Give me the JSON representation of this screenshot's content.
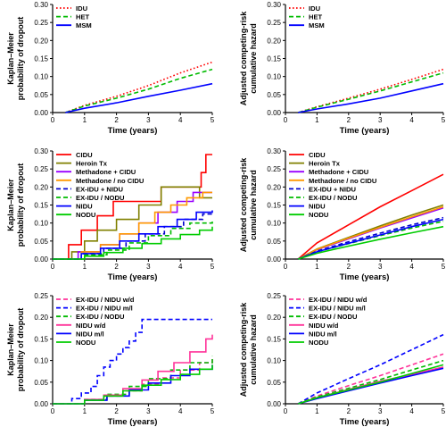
{
  "chart_data": [
    {
      "type": "line",
      "xlabel": "Time (years)",
      "ylabel": [
        "Kaplan–Meier",
        "probability of dropout"
      ],
      "xlim": [
        0,
        5
      ],
      "ylim": [
        0,
        0.3
      ],
      "xticks": [
        "0",
        "1",
        "2",
        "3",
        "4",
        "5"
      ],
      "yticks": [
        "0.00",
        "0.05",
        "0.10",
        "0.15",
        "0.20",
        "0.25",
        "0.30"
      ],
      "legend_position": "top-left",
      "series": [
        {
          "name": "IDU",
          "color": "#ff0000",
          "dash": "dot",
          "x": [
            0.4,
            1,
            2,
            3,
            4,
            5
          ],
          "y": [
            0,
            0.02,
            0.045,
            0.075,
            0.11,
            0.14
          ]
        },
        {
          "name": "HET",
          "color": "#00bb00",
          "dash": "dash",
          "x": [
            0.4,
            1,
            2,
            3,
            4,
            5
          ],
          "y": [
            0,
            0.018,
            0.04,
            0.065,
            0.095,
            0.12
          ]
        },
        {
          "name": "MSM",
          "color": "#0000ff",
          "dash": "solid",
          "x": [
            0.4,
            1,
            2,
            3,
            4,
            5
          ],
          "y": [
            0,
            0.012,
            0.027,
            0.045,
            0.062,
            0.08
          ]
        }
      ]
    },
    {
      "type": "line",
      "xlabel": "Time (years)",
      "ylabel": [
        "Adjusted competing-risk",
        "cumulative hazard"
      ],
      "xlim": [
        0,
        5
      ],
      "ylim": [
        0,
        0.3
      ],
      "xticks": [
        "0",
        "1",
        "2",
        "3",
        "4",
        "5"
      ],
      "yticks": [
        "0.00",
        "0.05",
        "0.10",
        "0.15",
        "0.20",
        "0.25",
        "0.30"
      ],
      "legend_position": "top-left",
      "series": [
        {
          "name": "IDU",
          "color": "#ff0000",
          "dash": "dot",
          "x": [
            0.4,
            1,
            2,
            3,
            4,
            5
          ],
          "y": [
            0,
            0.016,
            0.04,
            0.065,
            0.092,
            0.12
          ]
        },
        {
          "name": "HET",
          "color": "#00bb00",
          "dash": "dash",
          "x": [
            0.4,
            1,
            2,
            3,
            4,
            5
          ],
          "y": [
            0,
            0.015,
            0.037,
            0.06,
            0.085,
            0.11
          ]
        },
        {
          "name": "MSM",
          "color": "#0000ff",
          "dash": "solid",
          "x": [
            0.4,
            1,
            2,
            3,
            4,
            5
          ],
          "y": [
            0,
            0.01,
            0.024,
            0.04,
            0.06,
            0.08
          ]
        }
      ]
    },
    {
      "type": "line",
      "xlabel": "Time (years)",
      "ylabel": [
        "Kaplan–Meier",
        "probability of dropout"
      ],
      "xlim": [
        0,
        5
      ],
      "ylim": [
        0,
        0.3
      ],
      "xticks": [
        "0",
        "1",
        "2",
        "3",
        "4",
        "5"
      ],
      "yticks": [
        "0.00",
        "0.05",
        "0.10",
        "0.15",
        "0.20",
        "0.25",
        "0.30"
      ],
      "legend_position": "top-left",
      "series": [
        {
          "name": "CIDU",
          "color": "#ff0000",
          "dash": "solid",
          "step": true,
          "x": [
            0,
            0.4,
            0.5,
            0.9,
            1.4,
            1.9,
            2.6,
            3.4,
            4.5,
            4.65,
            4.8,
            5
          ],
          "y": [
            0,
            0,
            0.04,
            0.08,
            0.12,
            0.16,
            0.16,
            0.2,
            0.2,
            0.24,
            0.29,
            0.29
          ]
        },
        {
          "name": "Heroin Tx",
          "color": "#808000",
          "dash": "solid",
          "step": true,
          "x": [
            0,
            0.4,
            0.6,
            1.0,
            1.4,
            2.0,
            2.7,
            3.4,
            4.5,
            4.6,
            5
          ],
          "y": [
            0,
            0,
            0.02,
            0.05,
            0.08,
            0.11,
            0.15,
            0.2,
            0.2,
            0.17,
            0.17
          ]
        },
        {
          "name": "Methadone + CIDU",
          "color": "#9900ff",
          "dash": "solid",
          "step": true,
          "x": [
            0,
            0.4,
            0.8,
            1.5,
            2.1,
            2.7,
            3.3,
            3.9,
            4.4,
            5
          ],
          "y": [
            0,
            0,
            0.02,
            0.04,
            0.07,
            0.1,
            0.13,
            0.16,
            0.185,
            0.185
          ]
        },
        {
          "name": "Methadone / no CIDU",
          "color": "#ff9900",
          "dash": "solid",
          "step": true,
          "x": [
            0,
            0.4,
            0.9,
            1.5,
            2.1,
            2.7,
            3.2,
            3.7,
            4.2,
            4.7,
            5
          ],
          "y": [
            0,
            0,
            0.02,
            0.04,
            0.07,
            0.1,
            0.13,
            0.15,
            0.17,
            0.185,
            0.185
          ]
        },
        {
          "name": "EX-IDU + NIDU",
          "color": "#0000cc",
          "dash": "dash",
          "step": true,
          "x": [
            0,
            0.4,
            0.9,
            1.6,
            2.3,
            2.9,
            3.5,
            4.1,
            4.7,
            5
          ],
          "y": [
            0,
            0,
            0.015,
            0.03,
            0.05,
            0.07,
            0.09,
            0.11,
            0.125,
            0.125
          ]
        },
        {
          "name": "EX-IDU / NODU",
          "color": "#00bb00",
          "dash": "dash",
          "step": true,
          "x": [
            0,
            0.4,
            1.0,
            1.7,
            2.4,
            3.0,
            3.7,
            4.3,
            5
          ],
          "y": [
            0,
            0,
            0.012,
            0.025,
            0.045,
            0.065,
            0.085,
            0.1,
            0.11
          ]
        },
        {
          "name": "NIDU",
          "color": "#0000ff",
          "dash": "solid",
          "step": true,
          "x": [
            0,
            0.4,
            0.9,
            1.5,
            2.1,
            2.7,
            3.3,
            3.9,
            4.5,
            5
          ],
          "y": [
            0,
            0,
            0.015,
            0.03,
            0.05,
            0.07,
            0.09,
            0.11,
            0.13,
            0.135
          ]
        },
        {
          "name": "NODU",
          "color": "#00cc00",
          "dash": "solid",
          "step": true,
          "x": [
            0,
            0.4,
            1.0,
            1.6,
            2.2,
            2.8,
            3.4,
            4.0,
            4.6,
            5
          ],
          "y": [
            0,
            0,
            0.008,
            0.018,
            0.03,
            0.043,
            0.056,
            0.068,
            0.08,
            0.09
          ]
        }
      ]
    },
    {
      "type": "line",
      "xlabel": "Time (years)",
      "ylabel": [
        "Adjusted competing-risk",
        "cumulative hazard"
      ],
      "xlim": [
        0,
        5
      ],
      "ylim": [
        0,
        0.3
      ],
      "xticks": [
        "0",
        "1",
        "2",
        "3",
        "4",
        "5"
      ],
      "yticks": [
        "0.00",
        "0.05",
        "0.10",
        "0.15",
        "0.20",
        "0.25",
        "0.30"
      ],
      "legend_position": "top-left",
      "series": [
        {
          "name": "CIDU",
          "color": "#ff0000",
          "dash": "solid",
          "x": [
            0.4,
            1,
            2,
            3,
            4,
            5
          ],
          "y": [
            0,
            0.045,
            0.095,
            0.145,
            0.19,
            0.235
          ]
        },
        {
          "name": "Heroin Tx",
          "color": "#808000",
          "dash": "solid",
          "x": [
            0.4,
            1,
            2,
            3,
            4,
            5
          ],
          "y": [
            0,
            0.028,
            0.06,
            0.092,
            0.122,
            0.15
          ]
        },
        {
          "name": "Methadone + CIDU",
          "color": "#9900ff",
          "dash": "solid",
          "x": [
            0.4,
            1,
            2,
            3,
            4,
            5
          ],
          "y": [
            0,
            0.026,
            0.056,
            0.086,
            0.114,
            0.142
          ]
        },
        {
          "name": "Methadone / no CIDU",
          "color": "#ff9900",
          "dash": "solid",
          "x": [
            0.4,
            1,
            2,
            3,
            4,
            5
          ],
          "y": [
            0,
            0.027,
            0.058,
            0.088,
            0.117,
            0.145
          ]
        },
        {
          "name": "EX-IDU + NIDU",
          "color": "#0000cc",
          "dash": "dash",
          "x": [
            0.4,
            1,
            2,
            3,
            4,
            5
          ],
          "y": [
            0,
            0.022,
            0.048,
            0.072,
            0.095,
            0.115
          ]
        },
        {
          "name": "EX-IDU / NODU",
          "color": "#00bb00",
          "dash": "dash",
          "x": [
            0.4,
            1,
            2,
            3,
            4,
            5
          ],
          "y": [
            0,
            0.02,
            0.043,
            0.065,
            0.086,
            0.105
          ]
        },
        {
          "name": "NIDU",
          "color": "#0000ff",
          "dash": "solid",
          "x": [
            0.4,
            1,
            2,
            3,
            4,
            5
          ],
          "y": [
            0,
            0.02,
            0.044,
            0.067,
            0.09,
            0.11
          ]
        },
        {
          "name": "NODU",
          "color": "#00cc00",
          "dash": "solid",
          "x": [
            0.4,
            1,
            2,
            3,
            4,
            5
          ],
          "y": [
            0,
            0.016,
            0.036,
            0.055,
            0.073,
            0.09
          ]
        }
      ]
    },
    {
      "type": "line",
      "xlabel": "Time (years)",
      "ylabel": [
        "Kaplan–Meier",
        "probability of dropout"
      ],
      "xlim": [
        0,
        5
      ],
      "ylim": [
        0,
        0.25
      ],
      "xticks": [
        "0",
        "1",
        "2",
        "3",
        "4",
        "5"
      ],
      "yticks": [
        "0.00",
        "0.05",
        "0.10",
        "0.15",
        "0.20",
        "0.25"
      ],
      "legend_position": "top-left",
      "series": [
        {
          "name": "EX-IDU / NIDU w/d",
          "color": "#ff3399",
          "dash": "dash",
          "step": true,
          "x": [
            0,
            0.4,
            1.0,
            1.6,
            2.2,
            2.8,
            3.4,
            4.0,
            4.6,
            5
          ],
          "y": [
            0,
            0,
            0.008,
            0.018,
            0.03,
            0.045,
            0.06,
            0.078,
            0.095,
            0.105
          ]
        },
        {
          "name": "EX-IDU / NIDU m/l",
          "color": "#0000ff",
          "dash": "dash",
          "step": true,
          "x": [
            0,
            0.4,
            0.6,
            0.9,
            1.2,
            1.4,
            1.6,
            1.8,
            2.0,
            2.2,
            2.4,
            2.6,
            2.8,
            5
          ],
          "y": [
            0,
            0,
            0.012,
            0.025,
            0.04,
            0.065,
            0.085,
            0.1,
            0.115,
            0.13,
            0.145,
            0.165,
            0.195,
            0.195
          ]
        },
        {
          "name": "EX-IDU / NODU",
          "color": "#00bb00",
          "dash": "dash",
          "step": true,
          "x": [
            0,
            0.4,
            1.0,
            1.7,
            2.4,
            3.0,
            3.7,
            4.3,
            5
          ],
          "y": [
            0,
            0,
            0.01,
            0.022,
            0.04,
            0.058,
            0.078,
            0.095,
            0.11
          ]
        },
        {
          "name": "NIDU w/d",
          "color": "#ff3399",
          "dash": "solid",
          "step": true,
          "x": [
            0,
            0.4,
            1.0,
            1.6,
            2.2,
            2.8,
            3.3,
            3.8,
            4.3,
            4.8,
            5
          ],
          "y": [
            0,
            0,
            0.01,
            0.02,
            0.035,
            0.055,
            0.075,
            0.095,
            0.12,
            0.15,
            0.16
          ]
        },
        {
          "name": "NIDU m/l",
          "color": "#0000ff",
          "dash": "solid",
          "step": true,
          "x": [
            0,
            0.4,
            1.0,
            1.7,
            2.4,
            3.0,
            3.7,
            4.3,
            5
          ],
          "y": [
            0,
            0,
            0.008,
            0.018,
            0.032,
            0.048,
            0.065,
            0.08,
            0.09
          ]
        },
        {
          "name": "NODU",
          "color": "#00cc00",
          "dash": "solid",
          "step": true,
          "x": [
            0,
            0.4,
            1.0,
            1.6,
            2.2,
            2.8,
            3.4,
            4.0,
            4.6,
            5
          ],
          "y": [
            0,
            0,
            0.008,
            0.018,
            0.03,
            0.043,
            0.056,
            0.068,
            0.08,
            0.09
          ]
        }
      ]
    },
    {
      "type": "line",
      "xlabel": "Time (years)",
      "ylabel": [
        "Adjusted competing-risk",
        "cumulative hazard"
      ],
      "xlim": [
        0,
        5
      ],
      "ylim": [
        0,
        0.25
      ],
      "xticks": [
        "0",
        "1",
        "2",
        "3",
        "4",
        "5"
      ],
      "yticks": [
        "0.00",
        "0.05",
        "0.10",
        "0.15",
        "0.20",
        "0.25"
      ],
      "legend_position": "top-left",
      "series": [
        {
          "name": "EX-IDU / NIDU w/d",
          "color": "#ff3399",
          "dash": "dash",
          "x": [
            0.4,
            1,
            2,
            3,
            4,
            5
          ],
          "y": [
            0,
            0.018,
            0.042,
            0.065,
            0.09,
            0.115
          ]
        },
        {
          "name": "EX-IDU / NIDU m/l",
          "color": "#0000ff",
          "dash": "dash",
          "x": [
            0.4,
            1,
            2,
            3,
            4,
            5
          ],
          "y": [
            0,
            0.025,
            0.058,
            0.09,
            0.125,
            0.16
          ]
        },
        {
          "name": "EX-IDU / NODU",
          "color": "#00bb00",
          "dash": "dash",
          "x": [
            0.4,
            1,
            2,
            3,
            4,
            5
          ],
          "y": [
            0,
            0.016,
            0.036,
            0.056,
            0.078,
            0.1
          ]
        },
        {
          "name": "NIDU w/d",
          "color": "#ff3399",
          "dash": "solid",
          "x": [
            0.4,
            1,
            2,
            3,
            4,
            5
          ],
          "y": [
            0,
            0.014,
            0.033,
            0.052,
            0.068,
            0.085
          ]
        },
        {
          "name": "NIDU m/l",
          "color": "#0000ff",
          "dash": "solid",
          "x": [
            0.4,
            1,
            2,
            3,
            4,
            5
          ],
          "y": [
            0,
            0.012,
            0.03,
            0.048,
            0.065,
            0.082
          ]
        },
        {
          "name": "NODU",
          "color": "#00cc00",
          "dash": "solid",
          "x": [
            0.4,
            1,
            2,
            3,
            4,
            5
          ],
          "y": [
            0,
            0.014,
            0.032,
            0.05,
            0.07,
            0.09
          ]
        }
      ]
    }
  ]
}
